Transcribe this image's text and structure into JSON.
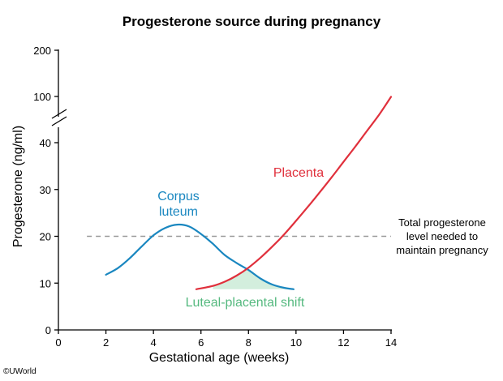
{
  "chart_data": {
    "type": "line",
    "title": "Progesterone source during pregnancy",
    "xlabel": "Gestational age (weeks)",
    "ylabel": "Progesterone (ng/ml)",
    "xlim": [
      0,
      14
    ],
    "x_ticks": [
      "0",
      "2",
      "4",
      "6",
      "8",
      "10",
      "12",
      "14"
    ],
    "y_ticks_lower": [
      "0",
      "10",
      "20",
      "30",
      "40"
    ],
    "y_ticks_upper": [
      "100",
      "200"
    ],
    "ylim_lower": [
      0,
      40
    ],
    "axis_break": true,
    "grid": false,
    "series": [
      {
        "name": "Corpus luteum",
        "label_lines": [
          "Corpus",
          "luteum"
        ],
        "color": "#1a87c0",
        "x": [
          2.0,
          2.5,
          3.0,
          3.5,
          4.0,
          4.5,
          5.0,
          5.5,
          6.0,
          6.5,
          7.0,
          7.5,
          8.0,
          8.5,
          9.0,
          9.5,
          9.9
        ],
        "y": [
          11.8,
          13.2,
          15.3,
          17.8,
          20.2,
          21.8,
          22.5,
          22.1,
          20.5,
          18.4,
          16.0,
          14.3,
          12.8,
          11.0,
          9.7,
          9.0,
          8.7
        ]
      },
      {
        "name": "Placenta",
        "label_lines": [
          "Placenta"
        ],
        "color": "#e0303c",
        "x": [
          5.8,
          6.5,
          7.0,
          7.5,
          8.0,
          8.5,
          9.0,
          9.5,
          10.0,
          10.5,
          11.0,
          11.5,
          12.0,
          12.5,
          13.0,
          13.5,
          14.0
        ],
        "y": [
          8.7,
          9.4,
          10.3,
          11.6,
          13.3,
          15.4,
          17.8,
          20.4,
          23.3,
          26.3,
          29.4,
          32.6,
          35.9,
          39.2,
          42.6,
          46.0,
          49.8
        ]
      }
    ],
    "threshold": {
      "y": 20,
      "color": "#999999",
      "label_lines": [
        "Total progesterone",
        "level needed to",
        "maintain pregnancy"
      ]
    },
    "shaded_region": {
      "label": "Luteal-placental shift",
      "color": "#d3eedd",
      "label_color": "#55b97f",
      "x_range": [
        6.5,
        9.9
      ]
    }
  },
  "credit": "©UWorld"
}
